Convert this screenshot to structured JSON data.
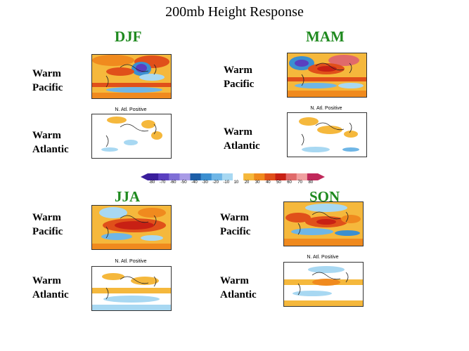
{
  "title": "200mb Height Response",
  "panels": [
    {
      "season": "DJF",
      "warm_pacific": "Warm Pacific",
      "warm_atlantic": "Warm Atlantic",
      "subtitle": "N. Atl. Positive"
    },
    {
      "season": "MAM",
      "warm_pacific": "Warm Pacific",
      "warm_atlantic": "Warm Atlantic",
      "subtitle": "N. Atl. Positive"
    },
    {
      "season": "JJA",
      "warm_pacific": "Warm Pacific",
      "warm_atlantic": "Warm Atlantic",
      "subtitle": "N. Atl. Positive"
    },
    {
      "season": "SON",
      "warm_pacific": "Warm Pacific",
      "warm_atlantic": "Warm Atlantic",
      "subtitle": "N. Atl. Positive"
    }
  ],
  "colorbar": {
    "ticks": [
      "-80",
      "-70",
      "-60",
      "-50",
      "-40",
      "-30",
      "-20",
      "-10",
      "10",
      "20",
      "30",
      "40",
      "50",
      "60",
      "70",
      "80"
    ],
    "colors": [
      "#3a1e9c",
      "#5a3fc0",
      "#7f6fd6",
      "#a89be6",
      "#1d5fa8",
      "#3b8fd0",
      "#6fb6e6",
      "#a8d8f2",
      "#ffffff",
      "#f5b83c",
      "#f08a1e",
      "#e0501a",
      "#c82014",
      "#e06a6a",
      "#f0a0a0",
      "#c0285a"
    ]
  }
}
